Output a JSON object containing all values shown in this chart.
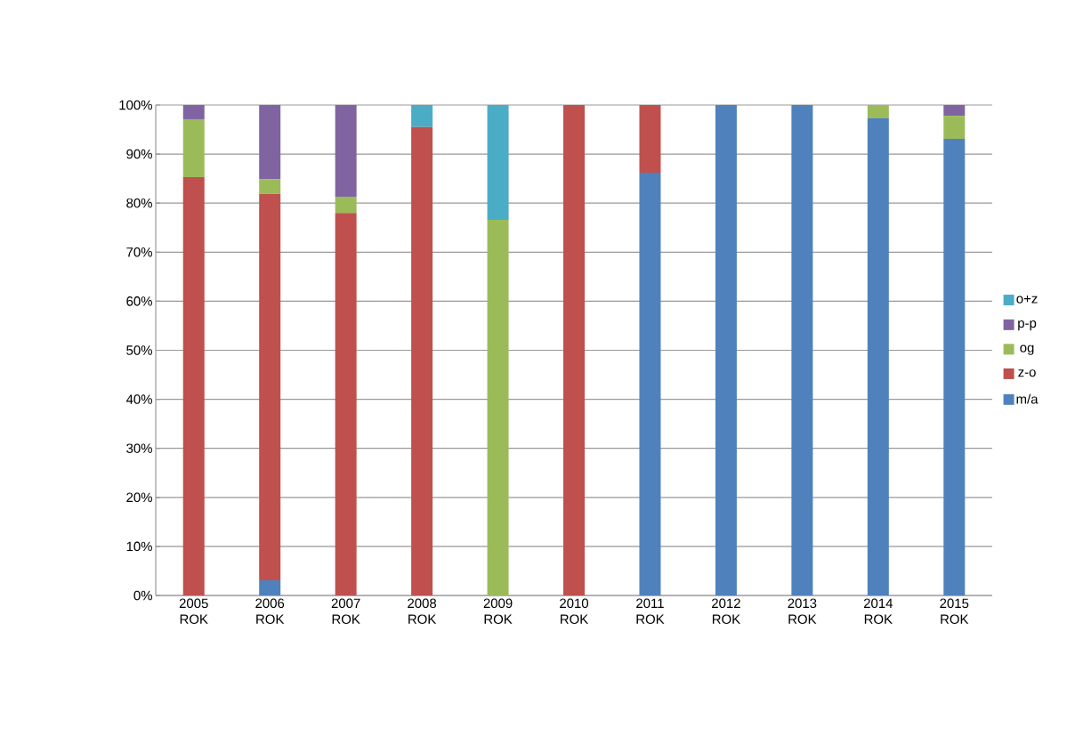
{
  "chart_data": {
    "type": "bar",
    "stacked": true,
    "categories": [
      "2005 ROK",
      "2006 ROK",
      "2007 ROK",
      "2008 ROK",
      "2009 ROK",
      "2010 ROK",
      "2011 ROK",
      "2012 ROK",
      "2013 ROK",
      "2014 ROK",
      "2015 ROK"
    ],
    "series": [
      {
        "name": "m/a",
        "color": "#4f81bd",
        "values": [
          0,
          3.1,
          0,
          0,
          0,
          0,
          86.2,
          100,
          100,
          97.3,
          93.1
        ]
      },
      {
        "name": "z-o",
        "color": "#c0504d",
        "values": [
          85.3,
          78.8,
          78.0,
          95.5,
          0,
          100,
          13.8,
          0,
          0,
          0,
          0
        ]
      },
      {
        "name": "og",
        "color": "#9bbb59",
        "values": [
          11.8,
          3.0,
          3.3,
          0,
          76.6,
          0,
          0,
          0,
          0,
          2.7,
          4.7
        ]
      },
      {
        "name": "p-p",
        "color": "#8064a2",
        "values": [
          2.9,
          15.1,
          18.7,
          0,
          0,
          0,
          0,
          0,
          0,
          0,
          2.2
        ]
      },
      {
        "name": "o+z",
        "color": "#4bacc6",
        "values": [
          0,
          0,
          0,
          4.5,
          23.4,
          0,
          0,
          0,
          0,
          0,
          0
        ]
      }
    ],
    "ylim": [
      0,
      100
    ],
    "yticks": [
      {
        "value": 0,
        "label": "0%"
      },
      {
        "value": 10,
        "label": "10%"
      },
      {
        "value": 20,
        "label": "20%"
      },
      {
        "value": 30,
        "label": "30%"
      },
      {
        "value": 40,
        "label": "40%"
      },
      {
        "value": 50,
        "label": "50%"
      },
      {
        "value": 60,
        "label": "60%"
      },
      {
        "value": 70,
        "label": "70%"
      },
      {
        "value": 80,
        "label": "80%"
      },
      {
        "value": 90,
        "label": "90%"
      },
      {
        "value": 100,
        "label": "100%"
      }
    ],
    "grid": "y",
    "legend": "right"
  }
}
